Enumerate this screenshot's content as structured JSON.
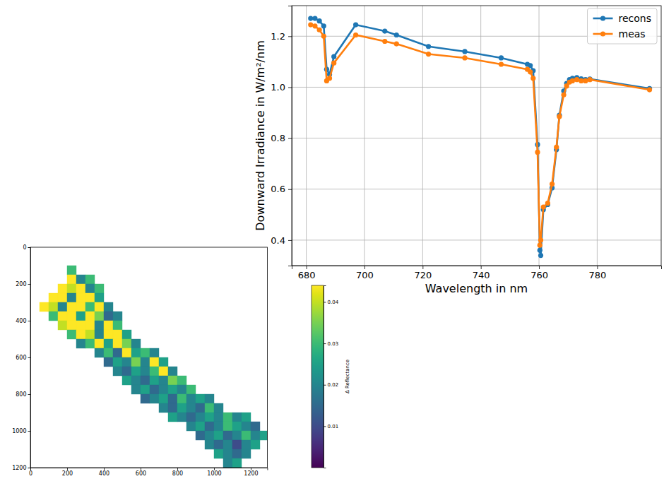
{
  "chart_data": [
    {
      "type": "line",
      "xlabel": "Wavelength in nm",
      "ylabel": "Downward Irradiance in W/m²/nm",
      "x": [
        681.5,
        683,
        684.5,
        686,
        687,
        688,
        689.5,
        697,
        707,
        711,
        722,
        734.5,
        747,
        756,
        757,
        758,
        759.5,
        760.3,
        760.6,
        761.5,
        763,
        764.5,
        766,
        767,
        768.5,
        769.5,
        770.5,
        771.5,
        773,
        774.5,
        776,
        777.5,
        798
      ],
      "series": [
        {
          "name": "recons",
          "color": "#1f77b4",
          "marker": "circle",
          "line_style": "solid",
          "values": [
            1.27,
            1.27,
            1.26,
            1.24,
            1.07,
            1.05,
            1.12,
            1.245,
            1.22,
            1.205,
            1.16,
            1.14,
            1.115,
            1.09,
            1.085,
            1.065,
            0.775,
            0.36,
            0.34,
            0.52,
            0.54,
            0.605,
            0.755,
            0.89,
            0.985,
            1.015,
            1.03,
            1.035,
            1.038,
            1.033,
            1.03,
            1.032,
            0.995
          ]
        },
        {
          "name": "meas",
          "color": "#ff7f0e",
          "marker": "circle",
          "line_style": "solid",
          "values": [
            1.245,
            1.24,
            1.225,
            1.2,
            1.025,
            1.035,
            1.095,
            1.205,
            1.18,
            1.17,
            1.13,
            1.115,
            1.09,
            1.07,
            1.06,
            1.035,
            0.745,
            0.38,
            0.4,
            0.53,
            0.545,
            0.62,
            0.765,
            0.885,
            0.97,
            1.005,
            1.02,
            1.025,
            1.03,
            1.025,
            1.025,
            1.03,
            0.99
          ]
        }
      ],
      "xlim": [
        675,
        802
      ],
      "ylim": [
        0.3,
        1.32
      ],
      "xticks": [
        680,
        700,
        720,
        740,
        760,
        780
      ],
      "yticks": [
        0.4,
        0.6,
        0.8,
        {
          "value": 1,
          "label": "1.0"
        },
        1.2
      ],
      "grid": true,
      "legend": "upper right"
    },
    {
      "type": "heatmap",
      "x_edges": [
        0,
        50,
        100,
        150,
        200,
        250,
        300,
        350,
        400,
        450,
        500,
        550,
        600,
        650,
        700,
        750,
        800,
        850,
        900,
        950,
        1000,
        1050,
        1100,
        1150,
        1200,
        1250,
        1300
      ],
      "y_edges": [
        0,
        50,
        100,
        150,
        200,
        250,
        300,
        350,
        400,
        450,
        500,
        550,
        600,
        650,
        700,
        750,
        800,
        850,
        900,
        950,
        1000,
        1050,
        1100,
        1150,
        1200
      ],
      "cells": [
        [
          null,
          null,
          null,
          null,
          null,
          null,
          null,
          null,
          null,
          null,
          null,
          null,
          null,
          null,
          null,
          null,
          null,
          null,
          null,
          null,
          null,
          null,
          null,
          null,
          null,
          null
        ],
        [
          null,
          null,
          null,
          null,
          null,
          null,
          null,
          null,
          null,
          null,
          null,
          null,
          null,
          null,
          null,
          null,
          null,
          null,
          null,
          null,
          null,
          null,
          null,
          null,
          null,
          null
        ],
        [
          null,
          null,
          null,
          null,
          0.03,
          null,
          null,
          null,
          null,
          null,
          null,
          null,
          null,
          null,
          null,
          null,
          null,
          null,
          null,
          null,
          null,
          null,
          null,
          null,
          null,
          null
        ],
        [
          null,
          null,
          null,
          null,
          0.044,
          0.02,
          0.03,
          null,
          null,
          null,
          null,
          null,
          null,
          null,
          null,
          null,
          null,
          null,
          null,
          null,
          null,
          null,
          null,
          null,
          null,
          null
        ],
        [
          null,
          null,
          null,
          0.044,
          0.04,
          0.044,
          0.02,
          0.03,
          null,
          null,
          null,
          null,
          null,
          null,
          null,
          null,
          null,
          null,
          null,
          null,
          null,
          null,
          null,
          null,
          null,
          null
        ],
        [
          null,
          null,
          0.044,
          0.044,
          0.02,
          0.044,
          0.044,
          0.025,
          null,
          null,
          null,
          null,
          null,
          null,
          null,
          null,
          null,
          null,
          null,
          null,
          null,
          null,
          null,
          null,
          null,
          null
        ],
        [
          null,
          0.044,
          0.04,
          0.02,
          0.044,
          0.044,
          0.03,
          0.044,
          0.02,
          null,
          null,
          null,
          null,
          null,
          null,
          null,
          null,
          null,
          null,
          null,
          null,
          null,
          null,
          null,
          null,
          null
        ],
        [
          null,
          null,
          0.03,
          0.044,
          0.044,
          0.025,
          0.044,
          0.035,
          0.015,
          0.02,
          null,
          null,
          null,
          null,
          null,
          null,
          null,
          null,
          null,
          null,
          null,
          null,
          null,
          null,
          null,
          null
        ],
        [
          null,
          null,
          null,
          0.04,
          0.044,
          0.044,
          0.044,
          0.02,
          0.044,
          0.03,
          null,
          null,
          null,
          null,
          null,
          null,
          null,
          null,
          null,
          null,
          null,
          null,
          null,
          null,
          null,
          null
        ],
        [
          null,
          null,
          null,
          null,
          0.03,
          0.044,
          0.04,
          0.02,
          0.044,
          0.044,
          0.025,
          null,
          null,
          null,
          null,
          null,
          null,
          null,
          null,
          null,
          null,
          null,
          null,
          null,
          null,
          null
        ],
        [
          null,
          null,
          null,
          null,
          null,
          0.02,
          0.03,
          0.044,
          0.025,
          0.044,
          0.035,
          0.02,
          null,
          null,
          null,
          null,
          null,
          null,
          null,
          null,
          null,
          null,
          null,
          null,
          null,
          null
        ],
        [
          null,
          null,
          null,
          null,
          null,
          null,
          null,
          0.02,
          0.03,
          0.015,
          0.044,
          0.025,
          0.03,
          0.02,
          null,
          null,
          null,
          null,
          null,
          null,
          null,
          null,
          null,
          null,
          null,
          null
        ],
        [
          null,
          null,
          null,
          null,
          null,
          null,
          null,
          null,
          0.015,
          0.025,
          0.02,
          0.035,
          0.02,
          0.044,
          0.025,
          null,
          null,
          null,
          null,
          null,
          null,
          null,
          null,
          null,
          null,
          null
        ],
        [
          null,
          null,
          null,
          null,
          null,
          null,
          null,
          null,
          null,
          0.02,
          0.015,
          0.025,
          0.02,
          0.03,
          0.044,
          0.02,
          null,
          null,
          null,
          null,
          null,
          null,
          null,
          null,
          null,
          null
        ],
        [
          null,
          null,
          null,
          null,
          null,
          null,
          null,
          null,
          null,
          null,
          0.025,
          0.02,
          0.015,
          0.025,
          0.02,
          0.035,
          0.03,
          null,
          null,
          null,
          null,
          null,
          null,
          null,
          null,
          null
        ],
        [
          null,
          null,
          null,
          null,
          null,
          null,
          null,
          null,
          null,
          null,
          null,
          0.02,
          0.025,
          0.015,
          0.02,
          0.025,
          0.02,
          0.03,
          null,
          null,
          null,
          null,
          null,
          null,
          null,
          null
        ],
        [
          null,
          null,
          null,
          null,
          null,
          null,
          null,
          null,
          null,
          null,
          null,
          null,
          0.015,
          0.02,
          0.025,
          0.015,
          0.03,
          0.02,
          0.025,
          0.02,
          null,
          null,
          null,
          null,
          null,
          null
        ],
        [
          null,
          null,
          null,
          null,
          null,
          null,
          null,
          null,
          null,
          null,
          null,
          null,
          null,
          null,
          0.02,
          0.015,
          0.025,
          0.02,
          0.015,
          0.03,
          0.02,
          null,
          null,
          null,
          null,
          null
        ],
        [
          null,
          null,
          null,
          null,
          null,
          null,
          null,
          null,
          null,
          null,
          null,
          null,
          null,
          null,
          null,
          0.025,
          0.02,
          0.015,
          0.02,
          0.025,
          0.02,
          0.03,
          0.02,
          0.025,
          null,
          null
        ],
        [
          null,
          null,
          null,
          null,
          null,
          null,
          null,
          null,
          null,
          null,
          null,
          null,
          null,
          null,
          null,
          null,
          null,
          0.02,
          0.025,
          0.015,
          0.02,
          0.03,
          0.025,
          0.02,
          0.015,
          null
        ],
        [
          null,
          null,
          null,
          null,
          null,
          null,
          null,
          null,
          null,
          null,
          null,
          null,
          null,
          null,
          null,
          null,
          null,
          null,
          0.015,
          0.02,
          0.025,
          0.015,
          0.02,
          0.03,
          0.02,
          0.025
        ],
        [
          null,
          null,
          null,
          null,
          null,
          null,
          null,
          null,
          null,
          null,
          null,
          null,
          null,
          null,
          null,
          null,
          null,
          null,
          null,
          0.02,
          0.015,
          0.02,
          0.01,
          0.02,
          0.025,
          null
        ],
        [
          null,
          null,
          null,
          null,
          null,
          null,
          null,
          null,
          null,
          null,
          null,
          null,
          null,
          null,
          null,
          null,
          null,
          null,
          null,
          null,
          0.025,
          0.02,
          0.015,
          0.02,
          null,
          null
        ],
        [
          null,
          null,
          null,
          null,
          null,
          null,
          null,
          null,
          null,
          null,
          null,
          null,
          null,
          null,
          null,
          null,
          null,
          null,
          null,
          null,
          null,
          0.02,
          0.025,
          null,
          null,
          null
        ]
      ],
      "xlim": [
        0,
        1290
      ],
      "ylim": [
        1200,
        0
      ],
      "xticks": [
        0,
        200,
        400,
        600,
        800,
        1000,
        1200
      ],
      "yticks": [
        0,
        200,
        400,
        600,
        800,
        1000,
        1200
      ],
      "colorbar": {
        "label": "Δ Reflectance",
        "range": [
          0,
          0.044
        ],
        "ticks": [
          0.01,
          0.02,
          0.03,
          0.04
        ]
      }
    }
  ]
}
